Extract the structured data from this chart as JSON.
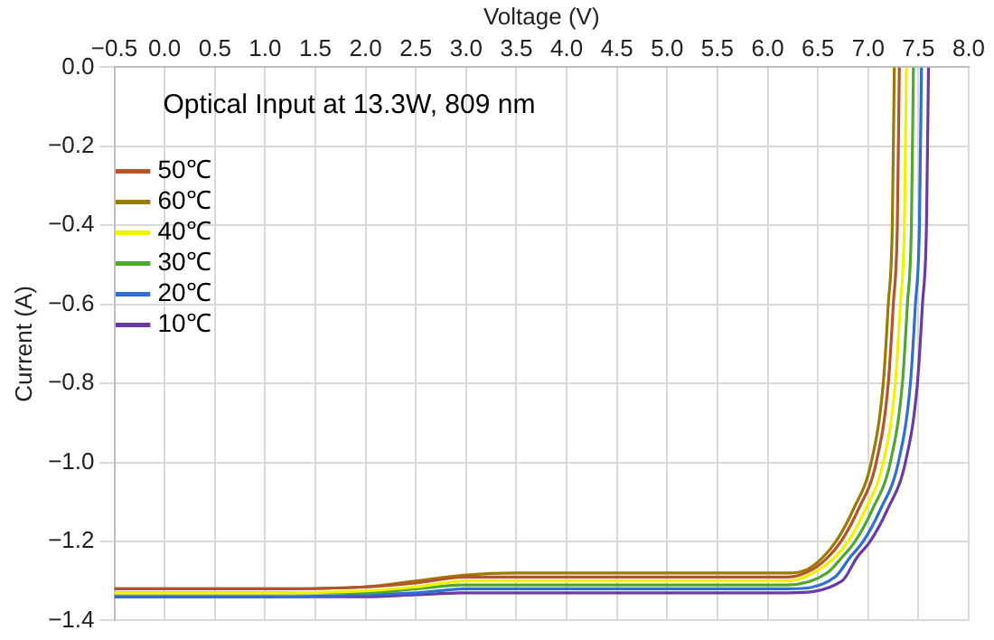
{
  "chart_data": {
    "type": "line",
    "xlabel": "Voltage (V)",
    "ylabel": "Current (A)",
    "annotations": [
      "Optical Input at 13.3W, 809 nm"
    ],
    "xlim": [
      -0.5,
      8.0
    ],
    "ylim": [
      -1.4,
      0.0
    ],
    "xticks": [
      {
        "value": -0.5,
        "label": "−0.5"
      },
      {
        "value": 0,
        "label": "0.0"
      },
      {
        "value": 0.5,
        "label": "0.5"
      },
      {
        "value": 1,
        "label": "1.0"
      },
      {
        "value": 1.5,
        "label": "1.5"
      },
      {
        "value": 2,
        "label": "2.0"
      },
      {
        "value": 2.5,
        "label": "2.5"
      },
      {
        "value": 3,
        "label": "3.0"
      },
      {
        "value": 3.5,
        "label": "3.5"
      },
      {
        "value": 4,
        "label": "4.0"
      },
      {
        "value": 4.5,
        "label": "4.5"
      },
      {
        "value": 5,
        "label": "5.0"
      },
      {
        "value": 5.5,
        "label": "5.5"
      },
      {
        "value": 6,
        "label": "6.0"
      },
      {
        "value": 6.5,
        "label": "6.5"
      },
      {
        "value": 7,
        "label": "7.0"
      },
      {
        "value": 7.5,
        "label": "7.5"
      },
      {
        "value": 8,
        "label": "8.0"
      }
    ],
    "yticks": [
      {
        "value": 0,
        "label": "0.0"
      },
      {
        "value": -0.2,
        "label": "−0.2"
      },
      {
        "value": -0.4,
        "label": "−0.4"
      },
      {
        "value": -0.6,
        "label": "−0.6"
      },
      {
        "value": -0.8,
        "label": "−0.8"
      },
      {
        "value": -1.0,
        "label": "−1.0"
      },
      {
        "value": -1.2,
        "label": "−1.2"
      },
      {
        "value": -1.4,
        "label": "−1.4"
      }
    ],
    "grid": true,
    "legend": "top left",
    "marker": "none",
    "line_style": "solid",
    "series": [
      {
        "name": "50℃",
        "color": "#b5532a",
        "x": [
          -0.5,
          1.0,
          2.0,
          2.5,
          3.0,
          3.5,
          6.2,
          6.45,
          6.6,
          6.73,
          6.9,
          7.08,
          7.2,
          7.25,
          7.29,
          7.31
        ],
        "values": [
          -1.32,
          -1.32,
          -1.315,
          -1.305,
          -1.29,
          -1.29,
          -1.29,
          -1.27,
          -1.24,
          -1.2,
          -1.12,
          -1.0,
          -0.8,
          -0.6,
          -0.4,
          0.0
        ]
      },
      {
        "name": "60℃",
        "color": "#9c7a00",
        "x": [
          -0.5,
          1.0,
          2.0,
          2.5,
          3.0,
          3.5,
          6.2,
          6.4,
          6.55,
          6.68,
          6.85,
          7.03,
          7.15,
          7.2,
          7.24,
          7.26
        ],
        "values": [
          -1.32,
          -1.32,
          -1.315,
          -1.3,
          -1.285,
          -1.28,
          -1.28,
          -1.27,
          -1.24,
          -1.2,
          -1.12,
          -1.0,
          -0.8,
          -0.6,
          -0.4,
          0.0
        ]
      },
      {
        "name": "40℃",
        "color": "#f2f200",
        "x": [
          -0.5,
          1.0,
          2.0,
          2.5,
          3.0,
          3.5,
          6.2,
          6.52,
          6.67,
          6.8,
          6.97,
          7.15,
          7.27,
          7.32,
          7.36,
          7.38
        ],
        "values": [
          -1.33,
          -1.33,
          -1.325,
          -1.315,
          -1.3,
          -1.3,
          -1.3,
          -1.27,
          -1.24,
          -1.2,
          -1.12,
          -1.0,
          -0.8,
          -0.6,
          -0.4,
          0.0
        ]
      },
      {
        "name": "30℃",
        "color": "#4ea72e",
        "x": [
          -0.5,
          1.0,
          2.0,
          2.5,
          3.0,
          3.5,
          6.2,
          6.59,
          6.74,
          6.87,
          7.04,
          7.22,
          7.34,
          7.39,
          7.43,
          7.45
        ],
        "values": [
          -1.33,
          -1.33,
          -1.33,
          -1.32,
          -1.31,
          -1.31,
          -1.31,
          -1.28,
          -1.24,
          -1.2,
          -1.12,
          -1.0,
          -0.8,
          -0.6,
          -0.4,
          0.0
        ]
      },
      {
        "name": "20℃",
        "color": "#2e6fd1",
        "x": [
          -0.5,
          1.0,
          2.0,
          2.5,
          3.0,
          3.5,
          6.2,
          6.67,
          6.82,
          6.95,
          7.12,
          7.3,
          7.42,
          7.47,
          7.51,
          7.53
        ],
        "values": [
          -1.34,
          -1.34,
          -1.335,
          -1.33,
          -1.32,
          -1.32,
          -1.32,
          -1.29,
          -1.24,
          -1.2,
          -1.12,
          -1.0,
          -0.8,
          -0.6,
          -0.4,
          0.0
        ]
      },
      {
        "name": "10℃",
        "color": "#6a3aa8",
        "x": [
          -0.5,
          1.0,
          2.0,
          2.5,
          3.0,
          3.5,
          6.2,
          6.74,
          6.89,
          7.02,
          7.19,
          7.37,
          7.49,
          7.54,
          7.58,
          7.6
        ],
        "values": [
          -1.34,
          -1.34,
          -1.34,
          -1.335,
          -1.33,
          -1.33,
          -1.33,
          -1.3,
          -1.24,
          -1.2,
          -1.12,
          -1.0,
          -0.8,
          -0.6,
          -0.4,
          0.0
        ]
      }
    ]
  }
}
